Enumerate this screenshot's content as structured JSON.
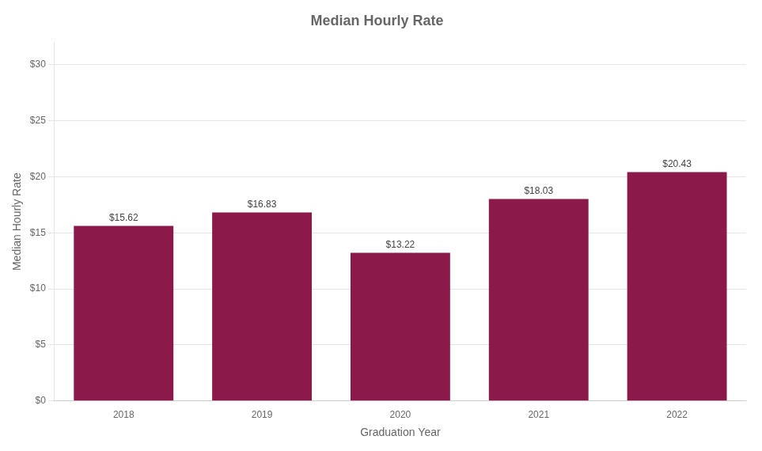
{
  "chart_data": {
    "type": "bar",
    "title": "Median Hourly Rate",
    "xlabel": "Graduation Year",
    "ylabel": "Median Hourly Rate",
    "categories": [
      "2018",
      "2019",
      "2020",
      "2021",
      "2022"
    ],
    "values": [
      15.62,
      16.83,
      13.22,
      18.03,
      20.43
    ],
    "value_labels": [
      "$15.62",
      "$16.83",
      "$13.22",
      "$18.03",
      "$20.43"
    ],
    "data_labels": true,
    "color": "#8B1A4A",
    "ylim": [
      0,
      32
    ],
    "yticks": [
      {
        "value": 0,
        "label": "$0"
      },
      {
        "value": 5,
        "label": "$5"
      },
      {
        "value": 10,
        "label": "$10"
      },
      {
        "value": 15,
        "label": "$15"
      },
      {
        "value": 20,
        "label": "$20"
      },
      {
        "value": 25,
        "label": "$25"
      },
      {
        "value": 30,
        "label": "$30"
      }
    ],
    "grid": true
  }
}
